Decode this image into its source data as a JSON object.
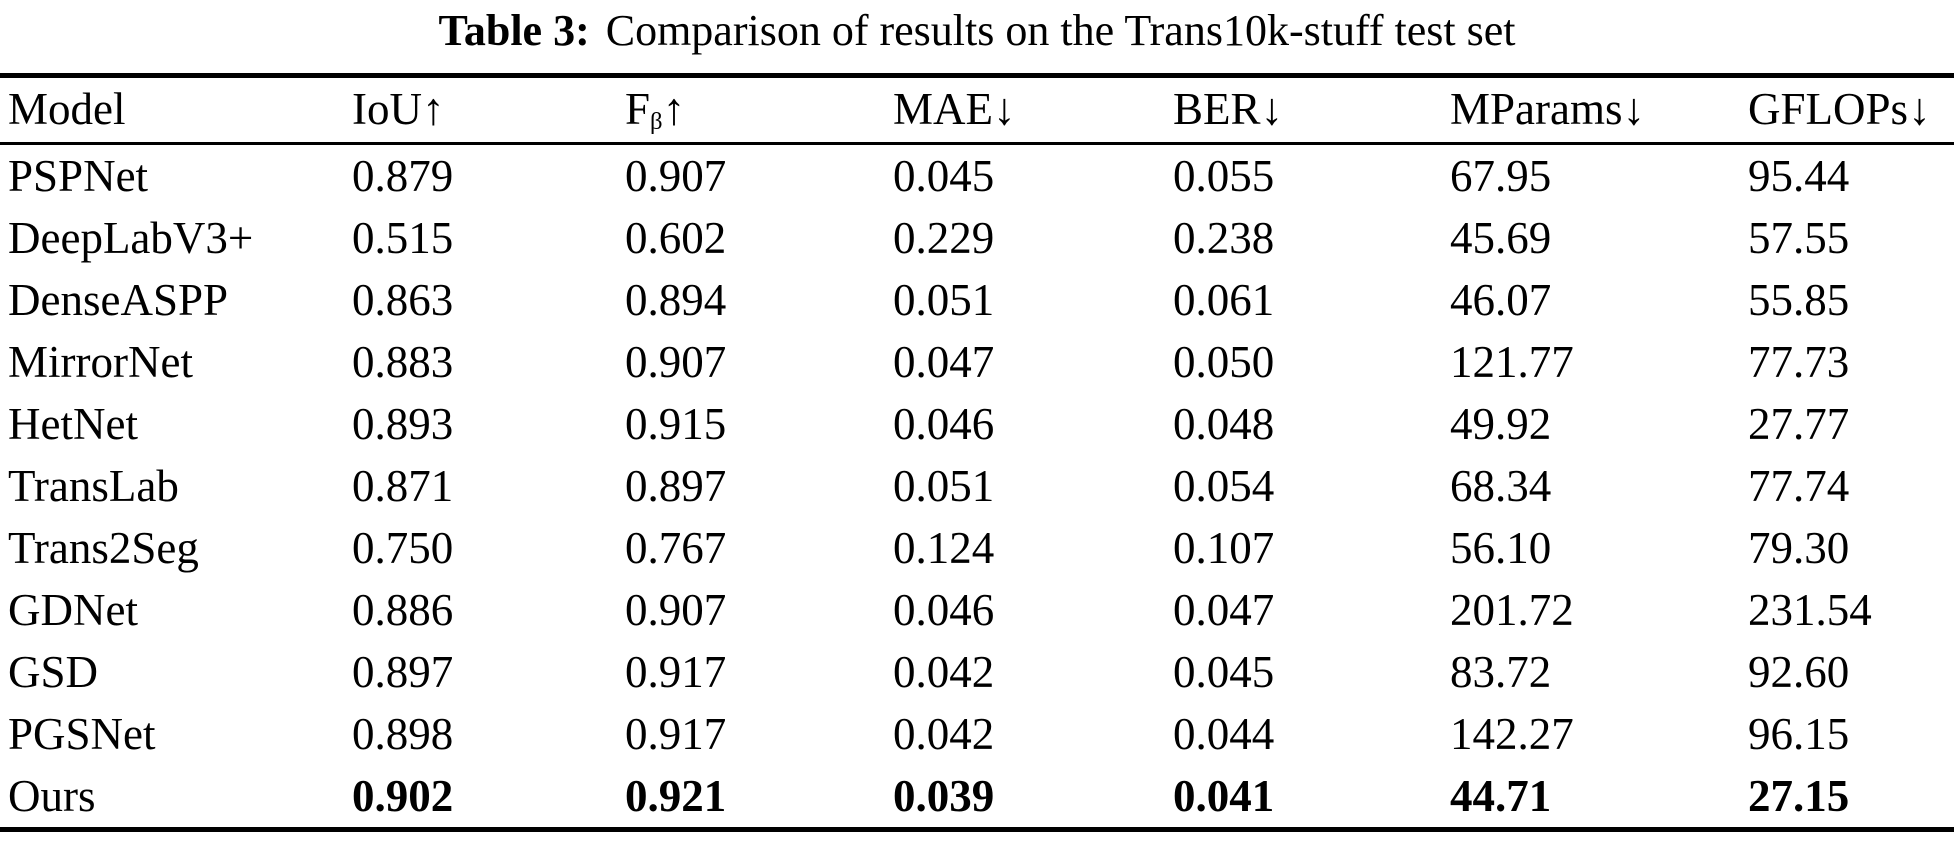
{
  "title": {
    "label": "Table 3:",
    "caption": "Comparison of results on the Trans10k-stuff test set"
  },
  "table": {
    "columns": [
      {
        "name": "Model",
        "sub": "",
        "arrow": ""
      },
      {
        "name": "IoU",
        "sub": "",
        "arrow": "↑"
      },
      {
        "name": "F",
        "sub": "β",
        "arrow": "↑"
      },
      {
        "name": "MAE",
        "sub": "",
        "arrow": "↓"
      },
      {
        "name": "BER",
        "sub": "",
        "arrow": "↓"
      },
      {
        "name": "MParams",
        "sub": "",
        "arrow": "↓"
      },
      {
        "name": "GFLOPs",
        "sub": "",
        "arrow": "↓"
      }
    ],
    "rows": [
      {
        "model": "PSPNet",
        "values": [
          "0.879",
          "0.907",
          "0.045",
          "0.055",
          "67.95",
          "95.44"
        ],
        "bold": false
      },
      {
        "model": "DeepLabV3+",
        "values": [
          "0.515",
          "0.602",
          "0.229",
          "0.238",
          "45.69",
          "57.55"
        ],
        "bold": false
      },
      {
        "model": "DenseASPP",
        "values": [
          "0.863",
          "0.894",
          "0.051",
          "0.061",
          "46.07",
          "55.85"
        ],
        "bold": false
      },
      {
        "model": "MirrorNet",
        "values": [
          "0.883",
          "0.907",
          "0.047",
          "0.050",
          "121.77",
          "77.73"
        ],
        "bold": false
      },
      {
        "model": "HetNet",
        "values": [
          "0.893",
          "0.915",
          "0.046",
          "0.048",
          "49.92",
          "27.77"
        ],
        "bold": false
      },
      {
        "model": "TransLab",
        "values": [
          "0.871",
          "0.897",
          "0.051",
          "0.054",
          "68.34",
          "77.74"
        ],
        "bold": false
      },
      {
        "model": "Trans2Seg",
        "values": [
          "0.750",
          "0.767",
          "0.124",
          "0.107",
          "56.10",
          "79.30"
        ],
        "bold": false
      },
      {
        "model": "GDNet",
        "values": [
          "0.886",
          "0.907",
          "0.046",
          "0.047",
          "201.72",
          "231.54"
        ],
        "bold": false
      },
      {
        "model": "GSD",
        "values": [
          "0.897",
          "0.917",
          "0.042",
          "0.045",
          "83.72",
          "92.60"
        ],
        "bold": false
      },
      {
        "model": "PGSNet",
        "values": [
          "0.898",
          "0.917",
          "0.042",
          "0.044",
          "142.27",
          "96.15"
        ],
        "bold": false
      },
      {
        "model": "Ours",
        "values": [
          "0.902",
          "0.921",
          "0.039",
          "0.041",
          "44.71",
          "27.15"
        ],
        "bold": true
      }
    ]
  },
  "colors": {
    "background": "#ffffff",
    "text": "#000000",
    "rule": "#000000"
  }
}
